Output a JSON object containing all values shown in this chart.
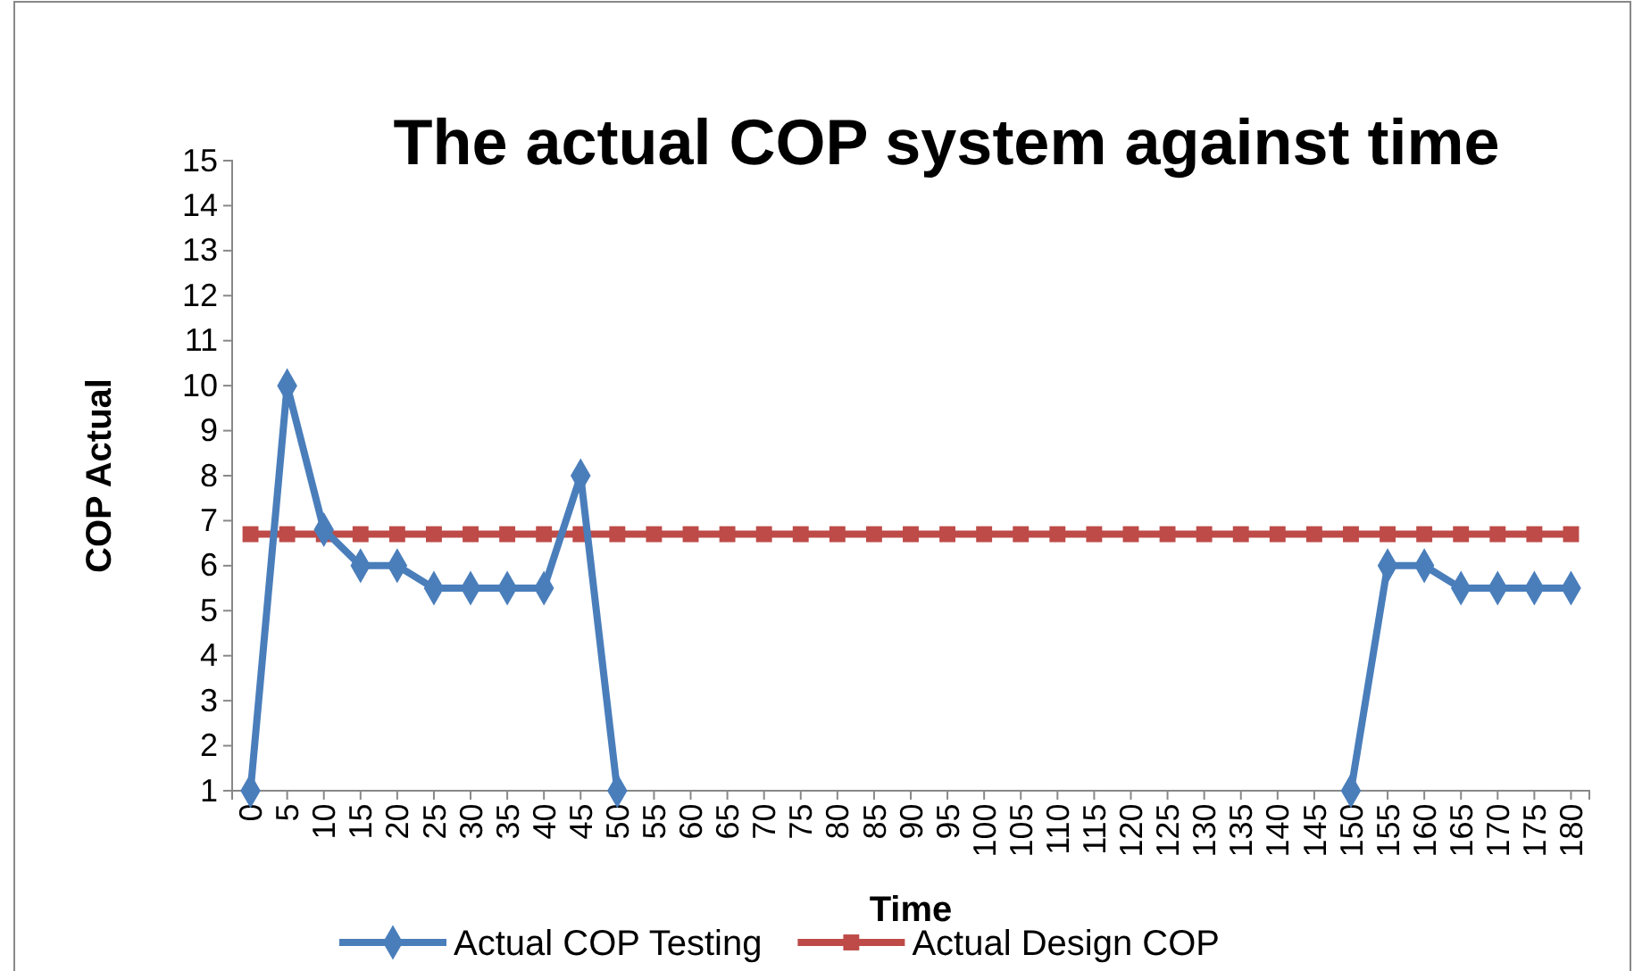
{
  "chart_data": {
    "type": "line",
    "title": "The actual COP system against time",
    "xlabel": "Time",
    "ylabel": "COP Actual",
    "categories": [
      "0",
      "5",
      "10",
      "15",
      "20",
      "25",
      "30",
      "35",
      "40",
      "45",
      "50",
      "55",
      "60",
      "65",
      "70",
      "75",
      "80",
      "85",
      "90",
      "95",
      "100",
      "105",
      "110",
      "115",
      "120",
      "125",
      "130",
      "135",
      "140",
      "145",
      "150",
      "155",
      "160",
      "165",
      "170",
      "175",
      "180"
    ],
    "series": [
      {
        "name": "Actual COP Testing",
        "color": "#4a7ebb",
        "marker": "diamond",
        "values": [
          1,
          10,
          6.8,
          6,
          6,
          5.5,
          5.5,
          5.5,
          5.5,
          8,
          1,
          null,
          null,
          null,
          null,
          null,
          null,
          null,
          null,
          null,
          null,
          null,
          null,
          null,
          null,
          null,
          null,
          null,
          null,
          null,
          1,
          6,
          6,
          5.5,
          5.5,
          5.5,
          5.5
        ]
      },
      {
        "name": "Actual Design COP",
        "color": "#be4b48",
        "marker": "square",
        "values": [
          6.7,
          6.7,
          6.7,
          6.7,
          6.7,
          6.7,
          6.7,
          6.7,
          6.7,
          6.7,
          6.7,
          6.7,
          6.7,
          6.7,
          6.7,
          6.7,
          6.7,
          6.7,
          6.7,
          6.7,
          6.7,
          6.7,
          6.7,
          6.7,
          6.7,
          6.7,
          6.7,
          6.7,
          6.7,
          6.7,
          6.7,
          6.7,
          6.7,
          6.7,
          6.7,
          6.7,
          6.7
        ]
      }
    ],
    "ylim": [
      1,
      15
    ],
    "yticks": [
      1,
      2,
      3,
      4,
      5,
      6,
      7,
      8,
      9,
      10,
      11,
      12,
      13,
      14,
      15
    ],
    "grid": false,
    "legend": "bottom"
  }
}
